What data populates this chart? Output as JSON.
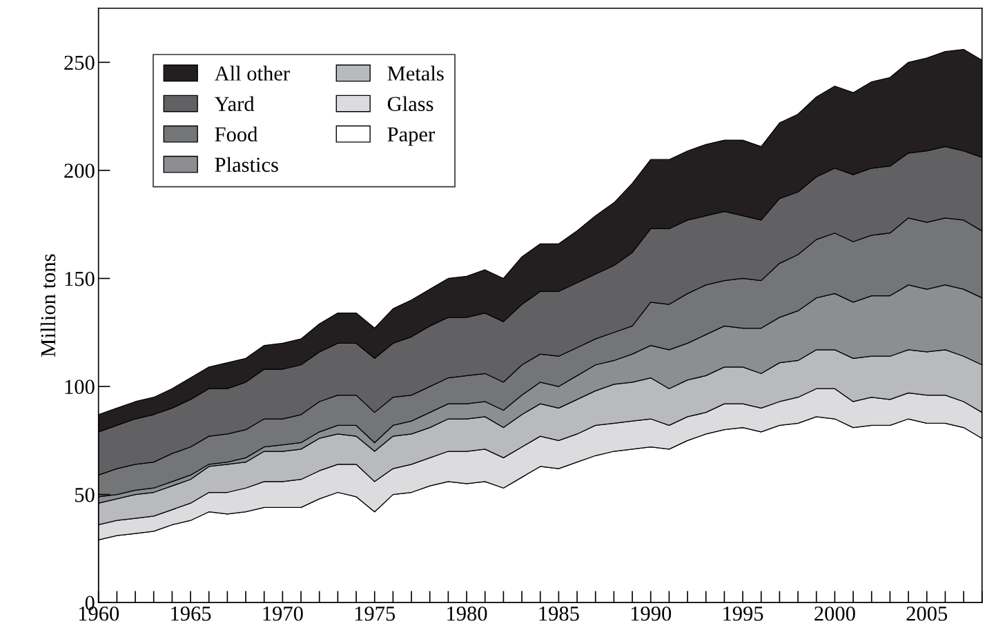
{
  "chart_data": {
    "type": "area",
    "stacked": true,
    "ylabel": "Million tons",
    "x": [
      1960,
      1961,
      1962,
      1963,
      1964,
      1965,
      1966,
      1967,
      1968,
      1969,
      1970,
      1971,
      1972,
      1973,
      1974,
      1975,
      1976,
      1977,
      1978,
      1979,
      1980,
      1981,
      1982,
      1983,
      1984,
      1985,
      1986,
      1987,
      1988,
      1989,
      1990,
      1991,
      1992,
      1993,
      1994,
      1995,
      1996,
      1997,
      1998,
      1999,
      2000,
      2001,
      2002,
      2003,
      2004,
      2005,
      2006,
      2007,
      2008
    ],
    "series": [
      {
        "name": "Paper",
        "color": "#ffffff",
        "values": [
          29,
          31,
          32,
          33,
          36,
          38,
          42,
          41,
          42,
          44,
          44,
          44,
          48,
          51,
          49,
          42,
          50,
          51,
          54,
          56,
          55,
          56,
          53,
          58,
          63,
          62,
          65,
          68,
          70,
          71,
          72,
          71,
          75,
          78,
          80,
          81,
          79,
          82,
          83,
          86,
          85,
          81,
          82,
          82,
          85,
          83,
          83,
          81,
          76
        ]
      },
      {
        "name": "Glass",
        "color": "#dcdcde",
        "values": [
          7,
          7,
          7,
          7,
          7,
          8,
          9,
          10,
          11,
          12,
          12,
          13,
          13,
          13,
          15,
          14,
          12,
          13,
          13,
          14,
          15,
          15,
          14,
          14,
          14,
          13,
          13,
          14,
          13,
          13,
          13,
          11,
          11,
          10,
          12,
          11,
          11,
          11,
          12,
          13,
          14,
          12,
          13,
          12,
          12,
          13,
          13,
          12,
          12
        ]
      },
      {
        "name": "Metals",
        "color": "#b9babd",
        "values": [
          10,
          10,
          11,
          11,
          11,
          11,
          12,
          13,
          12,
          14,
          14,
          14,
          15,
          14,
          13,
          14,
          15,
          14,
          14,
          15,
          15,
          15,
          14,
          15,
          15,
          15,
          16,
          16,
          18,
          18,
          19,
          17,
          17,
          17,
          17,
          17,
          16,
          18,
          17,
          18,
          18,
          20,
          19,
          20,
          20,
          20,
          21,
          21,
          22
        ]
      },
      {
        "name": "Plastics",
        "color": "#8d8e91",
        "values": [
          3,
          2,
          2,
          2,
          2,
          2,
          1,
          1,
          2,
          2,
          3,
          3,
          3,
          4,
          5,
          4,
          5,
          6,
          7,
          7,
          7,
          7,
          8,
          9,
          10,
          10,
          11,
          12,
          11,
          13,
          15,
          18,
          17,
          19,
          19,
          18,
          21,
          21,
          23,
          24,
          26,
          26,
          28,
          28,
          30,
          29,
          30,
          31,
          31
        ]
      },
      {
        "name": "Food",
        "color": "#747577",
        "values": [
          10,
          12,
          12,
          12,
          13,
          13,
          13,
          13,
          13,
          13,
          12,
          13,
          14,
          14,
          14,
          14,
          13,
          12,
          12,
          12,
          13,
          13,
          13,
          14,
          13,
          14,
          13,
          12,
          13,
          13,
          20,
          21,
          23,
          23,
          21,
          23,
          22,
          25,
          26,
          27,
          28,
          28,
          28,
          29,
          31,
          31,
          31,
          32,
          31
        ]
      },
      {
        "name": "Yard",
        "color": "#616163",
        "values": [
          20,
          20,
          21,
          22,
          21,
          22,
          22,
          21,
          22,
          23,
          23,
          23,
          23,
          24,
          24,
          25,
          25,
          27,
          28,
          28,
          27,
          28,
          28,
          28,
          29,
          30,
          30,
          30,
          31,
          34,
          34,
          35,
          34,
          32,
          32,
          29,
          28,
          30,
          29,
          29,
          30,
          31,
          31,
          31,
          30,
          33,
          33,
          32,
          34
        ]
      },
      {
        "name": "All other",
        "color": "#231f20",
        "values": [
          8,
          8,
          8,
          8,
          9,
          10,
          10,
          12,
          11,
          11,
          12,
          12,
          13,
          14,
          14,
          14,
          16,
          17,
          17,
          18,
          19,
          20,
          20,
          22,
          22,
          22,
          24,
          27,
          29,
          32,
          32,
          32,
          32,
          33,
          33,
          35,
          34,
          35,
          36,
          37,
          38,
          38,
          40,
          41,
          42,
          43,
          44,
          47,
          45
        ]
      }
    ],
    "xlim": [
      1960,
      2008
    ],
    "ylim": [
      0,
      275
    ],
    "xticks": [
      1960,
      1965,
      1970,
      1975,
      1980,
      1985,
      1990,
      1995,
      2000,
      2005
    ],
    "yticks": [
      0,
      50,
      100,
      150,
      200,
      250
    ],
    "grid": false,
    "legend": "top left"
  }
}
